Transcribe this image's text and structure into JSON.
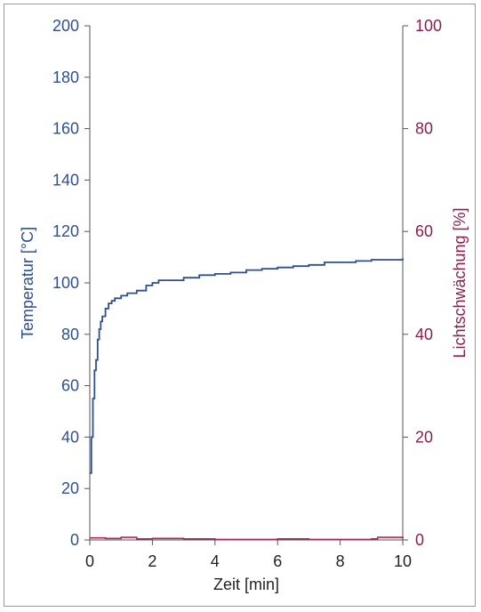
{
  "chart_data": {
    "type": "line",
    "xlabel": "Zeit [min]",
    "ylabel": "Temperatur [°C]",
    "y2label": "Lichtschwächung [%]",
    "xlim": [
      0,
      10
    ],
    "ylim": [
      0,
      200
    ],
    "y2lim": [
      0,
      100
    ],
    "x_ticks": [
      "0",
      "2",
      "4",
      "6",
      "8",
      "10"
    ],
    "y_ticks": [
      "0",
      "20",
      "40",
      "60",
      "80",
      "100",
      "120",
      "140",
      "160",
      "180",
      "200"
    ],
    "y2_ticks": [
      "0",
      "20",
      "40",
      "60",
      "80",
      "100"
    ],
    "grid": false,
    "colors": {
      "temperature": "#2f4f8f",
      "light": "#b0245a",
      "axis": "#222222",
      "y2_text": "#8b1e4f"
    },
    "series": [
      {
        "axis": "left",
        "x": [
          0,
          0.05,
          0.1,
          0.15,
          0.2,
          0.25,
          0.3,
          0.35,
          0.4,
          0.5,
          0.6,
          0.7,
          0.8,
          1.0,
          1.2,
          1.5,
          1.8,
          2.0,
          2.2,
          2.5,
          3.0,
          3.5,
          4.0,
          4.5,
          5.0,
          5.5,
          6.0,
          6.5,
          7.0,
          7.5,
          8.0,
          8.5,
          9.0,
          9.5,
          10.0
        ],
        "values": [
          26,
          40,
          55,
          66,
          70,
          78,
          82,
          85,
          87,
          90,
          92,
          93,
          94,
          95,
          96,
          97,
          99,
          100,
          101,
          101,
          102,
          103,
          103.5,
          104,
          105,
          105.5,
          106,
          106.5,
          107,
          108,
          108,
          108.5,
          109,
          109,
          109.5
        ]
      },
      {
        "axis": "right",
        "x": [
          0,
          0.5,
          1.0,
          1.5,
          2.0,
          3.0,
          4.0,
          5.0,
          6.0,
          7.0,
          8.0,
          9.0,
          9.2,
          10.0
        ],
        "values": [
          0.4,
          0.3,
          0.5,
          0.2,
          0.3,
          0.2,
          0.1,
          0.1,
          0.2,
          0.1,
          0.1,
          0.2,
          0.5,
          0.2
        ]
      }
    ]
  }
}
